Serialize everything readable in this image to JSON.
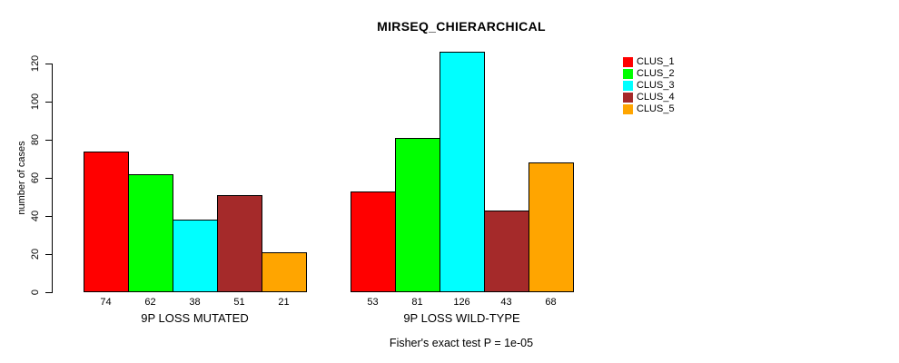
{
  "chart_data": {
    "type": "bar",
    "title": "MIRSEQ_CHIERARCHICAL",
    "ylabel": "number of cases",
    "xlabel": "",
    "categories": [
      "9P LOSS MUTATED",
      "9P LOSS WILD-TYPE"
    ],
    "series": [
      {
        "name": "CLUS_1",
        "color": "#FF0000",
        "values": [
          74,
          53
        ]
      },
      {
        "name": "CLUS_2",
        "color": "#00FF00",
        "values": [
          62,
          81
        ]
      },
      {
        "name": "CLUS_3",
        "color": "#00FFFF",
        "values": [
          38,
          126
        ]
      },
      {
        "name": "CLUS_4",
        "color": "#A52A2A",
        "values": [
          51,
          43
        ]
      },
      {
        "name": "CLUS_5",
        "color": "#FFA500",
        "values": [
          21,
          68
        ]
      }
    ],
    "bar_value_labels": [
      [
        74,
        62,
        38,
        51,
        21
      ],
      [
        53,
        81,
        126,
        43,
        68
      ]
    ],
    "yticks": [
      0,
      20,
      40,
      60,
      80,
      100,
      120
    ],
    "ylim": [
      0,
      128
    ],
    "grid": false,
    "legend_position": "top-right",
    "legend_entries": [
      "CLUS_1",
      "CLUS_2",
      "CLUS_3",
      "CLUS_4",
      "CLUS_5"
    ],
    "annotation": "Fisher's exact test P = 1e-05"
  }
}
